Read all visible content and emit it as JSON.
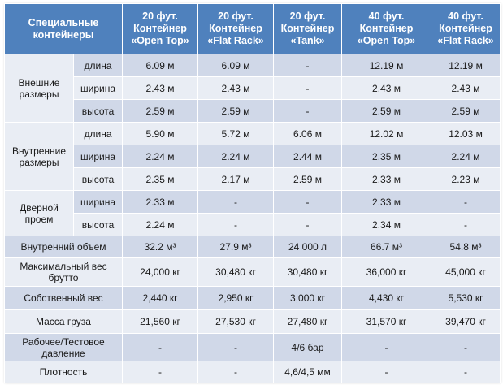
{
  "header": {
    "col0": "Специальные контейнеры",
    "col1": [
      "20 фут.",
      "Контейнер",
      "«Open Top»"
    ],
    "col2": [
      "20 фут.",
      "Контейнер",
      "«Flat Rack»"
    ],
    "col3": [
      "20 фут.",
      "Контейнер",
      "«Tank»"
    ],
    "col4": [
      "40 фут.",
      "Контейнер",
      "«Open Top»"
    ],
    "col5": [
      "40 фут.",
      "Контейнер",
      "«Flat Rack»"
    ]
  },
  "groups": {
    "external": [
      "Внешние",
      "размеры"
    ],
    "internal": [
      "Внутренние",
      "размеры"
    ],
    "door": [
      "Дверной",
      "проем"
    ]
  },
  "rows": [
    {
      "sub": "длина",
      "v": [
        "6.09 м",
        "6.09 м",
        "-",
        "12.19 м",
        "12.19 м"
      ]
    },
    {
      "sub": "ширина",
      "v": [
        "2.43 м",
        "2.43 м",
        "-",
        "2.43 м",
        "2.43 м"
      ]
    },
    {
      "sub": "высота",
      "v": [
        "2.59 м",
        "2.59 м",
        "-",
        "2.59 м",
        "2.59 м"
      ]
    },
    {
      "sub": "длина",
      "v": [
        "5.90 м",
        "5.72 м",
        "6.06 м",
        "12.02 м",
        "12.03 м"
      ]
    },
    {
      "sub": "ширина",
      "v": [
        "2.24 м",
        "2.24 м",
        "2.44 м",
        "2.35 м",
        "2.24 м"
      ]
    },
    {
      "sub": "высота",
      "v": [
        "2.35 м",
        "2.17 м",
        "2.59 м",
        "2.33 м",
        "2.23 м"
      ]
    },
    {
      "sub": "ширина",
      "v": [
        "2.33 м",
        "-",
        "-",
        "2.33 м",
        "-"
      ]
    },
    {
      "sub": "высота",
      "v": [
        "2.24 м",
        "-",
        "-",
        "2.34 м",
        "-"
      ]
    }
  ],
  "wide_rows": [
    {
      "label": [
        "Внутренний объем"
      ],
      "v": [
        "32.2 м³",
        "27.9 м³",
        "24 000 л",
        "66.7 м³",
        "54.8 м³"
      ]
    },
    {
      "label": [
        "Максимальный вес",
        "брутто"
      ],
      "v": [
        "24,000 кг",
        "30,480 кг",
        "30,480 кг",
        "36,000 кг",
        "45,000 кг"
      ]
    },
    {
      "label": [
        "Собственный вес"
      ],
      "v": [
        "2,440 кг",
        "2,950 кг",
        "3,000 кг",
        "4,430 кг",
        "5,530 кг"
      ]
    },
    {
      "label": [
        "Масса груза"
      ],
      "v": [
        "21,560 кг",
        "27,530 кг",
        "27,480 кг",
        "31,570 кг",
        "39,470 кг"
      ]
    },
    {
      "label": [
        "Рабочее/Тестовое",
        "давление"
      ],
      "v": [
        "-",
        "-",
        "4/6 бар",
        "-",
        "-"
      ]
    },
    {
      "label": [
        "Плотность"
      ],
      "v": [
        "-",
        "-",
        "4,6/4,5 мм",
        "-",
        "-"
      ]
    }
  ]
}
